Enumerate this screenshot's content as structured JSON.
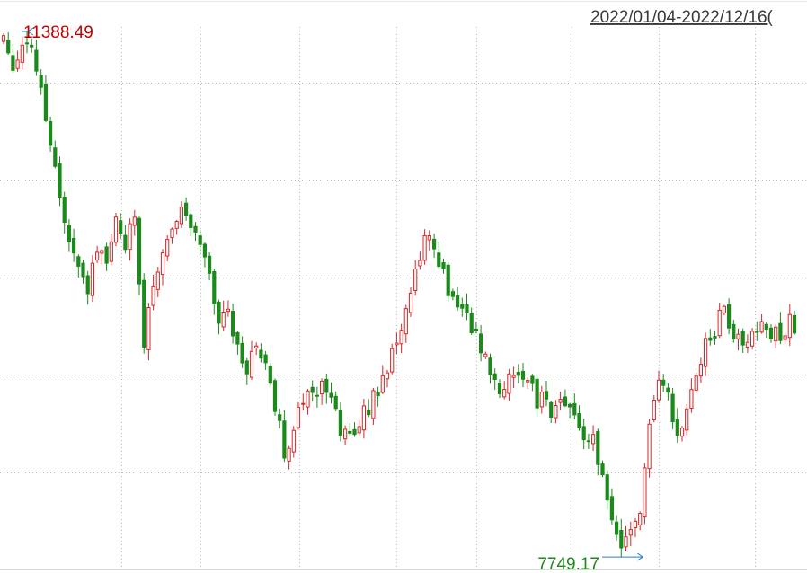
{
  "header": {
    "date_range": "2022/01/04-2022/12/16("
  },
  "chart_data": {
    "type": "candlestick",
    "title": "",
    "xlabel": "",
    "ylabel": "",
    "x_range": [
      "2022/01/04",
      "2022/12/16"
    ],
    "ylim": [
      7700,
      11450
    ],
    "grid": true,
    "up_color": "#d62728",
    "down_color": "#1a8a1a",
    "annotations": {
      "high": {
        "value": 11388.49,
        "label": "11388.49"
      },
      "low": {
        "value": 7749.17,
        "label": "7749.17"
      }
    },
    "close_path": [
      [
        0,
        11350
      ],
      [
        2,
        11150
      ],
      [
        4,
        11300
      ],
      [
        6,
        11250
      ],
      [
        8,
        11000
      ],
      [
        10,
        10550
      ],
      [
        12,
        10300
      ],
      [
        14,
        9950
      ],
      [
        16,
        9750
      ],
      [
        18,
        9600
      ],
      [
        20,
        9900
      ],
      [
        22,
        9850
      ],
      [
        24,
        10050
      ],
      [
        26,
        9950
      ],
      [
        28,
        10100
      ],
      [
        30,
        9250
      ],
      [
        32,
        9650
      ],
      [
        34,
        9900
      ],
      [
        36,
        10050
      ],
      [
        38,
        10200
      ],
      [
        40,
        10100
      ],
      [
        42,
        9950
      ],
      [
        44,
        9750
      ],
      [
        46,
        9350
      ],
      [
        48,
        9450
      ],
      [
        50,
        9250
      ],
      [
        52,
        9050
      ],
      [
        54,
        9250
      ],
      [
        56,
        9100
      ],
      [
        58,
        8800
      ],
      [
        60,
        8450
      ],
      [
        62,
        8650
      ],
      [
        64,
        8800
      ],
      [
        66,
        8900
      ],
      [
        68,
        8950
      ],
      [
        70,
        8800
      ],
      [
        72,
        8650
      ],
      [
        74,
        8600
      ],
      [
        76,
        8700
      ],
      [
        78,
        8800
      ],
      [
        80,
        8900
      ],
      [
        82,
        9050
      ],
      [
        84,
        9250
      ],
      [
        86,
        9450
      ],
      [
        88,
        9750
      ],
      [
        90,
        10000
      ],
      [
        92,
        9850
      ],
      [
        94,
        9700
      ],
      [
        96,
        9500
      ],
      [
        98,
        9450
      ],
      [
        100,
        9350
      ],
      [
        102,
        9150
      ],
      [
        104,
        9050
      ],
      [
        106,
        8950
      ],
      [
        108,
        9000
      ],
      [
        110,
        9050
      ],
      [
        112,
        8950
      ],
      [
        114,
        8850
      ],
      [
        116,
        8800
      ],
      [
        118,
        8750
      ],
      [
        120,
        8800
      ],
      [
        122,
        8700
      ],
      [
        124,
        8600
      ],
      [
        126,
        8550
      ],
      [
        128,
        8300
      ],
      [
        130,
        8000
      ],
      [
        132,
        7800
      ],
      [
        134,
        7880
      ],
      [
        136,
        8050
      ],
      [
        138,
        8600
      ],
      [
        140,
        9000
      ],
      [
        142,
        8850
      ],
      [
        144,
        8600
      ],
      [
        146,
        8750
      ],
      [
        148,
        9050
      ],
      [
        150,
        9200
      ],
      [
        152,
        9300
      ],
      [
        154,
        9500
      ],
      [
        156,
        9300
      ],
      [
        158,
        9200
      ],
      [
        160,
        9300
      ],
      [
        162,
        9350
      ],
      [
        164,
        9250
      ],
      [
        166,
        9300
      ],
      [
        168,
        9400
      ],
      [
        169,
        9340
      ]
    ]
  }
}
